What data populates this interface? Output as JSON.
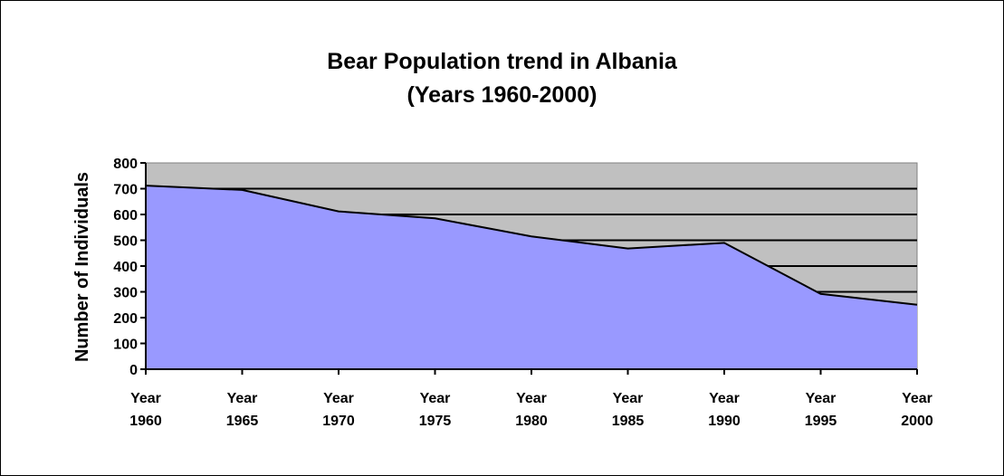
{
  "chart_data": {
    "type": "area",
    "title": [
      "Bear Population trend in Albania",
      "(Years 1960-2000)"
    ],
    "xlabel": "",
    "ylabel": "Number of Individuals",
    "categories": [
      [
        "Year",
        "1960"
      ],
      [
        "Year",
        "1965"
      ],
      [
        "Year",
        "1970"
      ],
      [
        "Year",
        "1975"
      ],
      [
        "Year",
        "1980"
      ],
      [
        "Year",
        "1985"
      ],
      [
        "Year",
        "1990"
      ],
      [
        "Year",
        "1995"
      ],
      [
        "Year",
        "2000"
      ]
    ],
    "values": [
      712,
      695,
      612,
      585,
      515,
      468,
      490,
      292,
      250
    ],
    "ylim": [
      0,
      800
    ],
    "yticks": [
      0,
      100,
      200,
      300,
      400,
      500,
      600,
      700,
      800
    ],
    "grid": true,
    "legend": "none"
  },
  "colors": {
    "plot_background": "#c0c0c0",
    "area_fill": "#9999ff",
    "line": "#000000",
    "gridline": "#000000"
  }
}
